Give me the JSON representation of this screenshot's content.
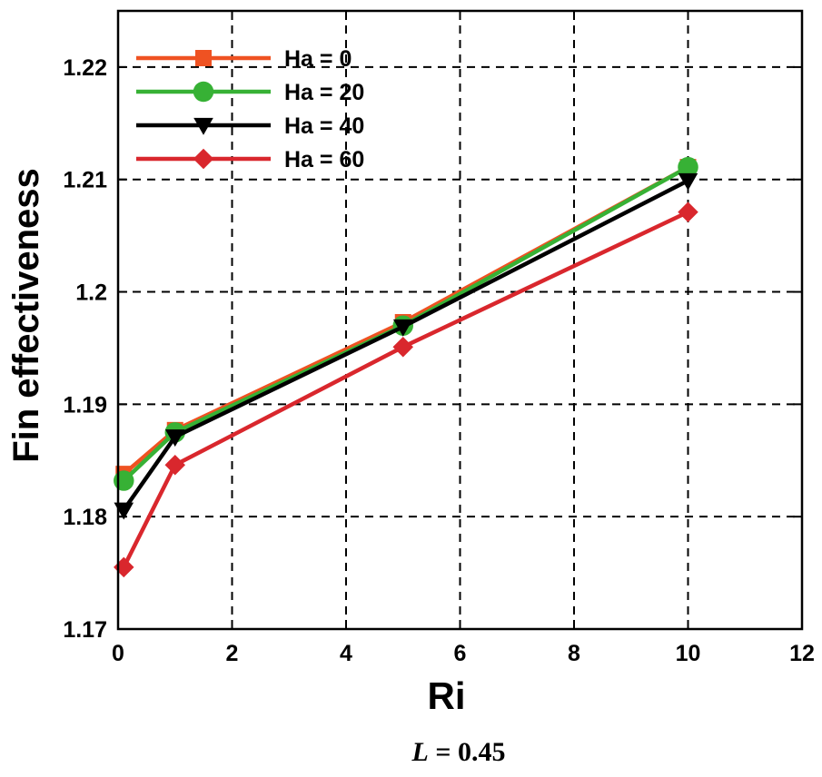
{
  "chart_data": {
    "type": "line",
    "title": "",
    "xlabel": "Ri",
    "ylabel": "Fin effectiveness",
    "xlim": [
      0,
      12
    ],
    "ylim": [
      1.17,
      1.225
    ],
    "xticks": [
      0,
      2,
      4,
      6,
      8,
      10,
      12
    ],
    "yticks": [
      1.17,
      1.18,
      1.19,
      1.2,
      1.21,
      1.22
    ],
    "ytick_labels": [
      "1.17",
      "1.18",
      "1.19",
      "1.2",
      "1.21",
      "1.22"
    ],
    "x": [
      0.1,
      1,
      5,
      10
    ],
    "legend_position": "top-left",
    "series": [
      {
        "name": "Ha = 0",
        "values": [
          1.1838,
          1.1877,
          1.1973,
          1.2111
        ],
        "color": "#ef5222",
        "marker": "square"
      },
      {
        "name": "Ha = 20",
        "values": [
          1.1832,
          1.1875,
          1.197,
          1.2111
        ],
        "color": "#37b135",
        "marker": "circle"
      },
      {
        "name": "Ha = 40",
        "values": [
          1.1806,
          1.1871,
          1.1969,
          1.2099
        ],
        "color": "#000000",
        "marker": "triangle-down"
      },
      {
        "name": "Ha = 60",
        "values": [
          1.1755,
          1.1846,
          1.1951,
          1.2071
        ],
        "color": "#d9272d",
        "marker": "diamond"
      }
    ]
  },
  "caption": {
    "variable": "L",
    "equals": " = 0.45"
  }
}
